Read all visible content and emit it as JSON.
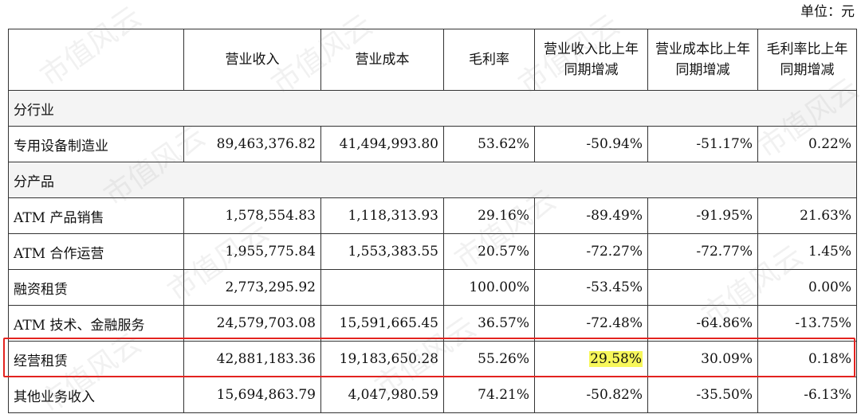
{
  "unit_note": "单位：元",
  "headers": [
    "",
    "营业收入",
    "营业成本",
    "毛利率",
    "营业收入比上年同期增减",
    "营业成本比上年同期增减",
    "毛利率比上年同期增减"
  ],
  "sections": [
    {
      "title": "分行业",
      "rows": [
        [
          "专用设备制造业",
          "89,463,376.82",
          "41,494,993.80",
          "53.62%",
          "-50.94%",
          "-51.17%",
          "0.22%"
        ]
      ]
    },
    {
      "title": "分产品",
      "rows": [
        [
          "ATM 产品销售",
          "1,578,554.83",
          "1,118,313.93",
          "29.16%",
          "-89.49%",
          "-91.95%",
          "21.63%"
        ],
        [
          "ATM 合作运营",
          "1,955,775.84",
          "1,553,383.55",
          "20.57%",
          "-72.27%",
          "-72.77%",
          "1.45%"
        ],
        [
          "融资租赁",
          "2,773,295.92",
          "",
          "100.00%",
          "-53.45%",
          "",
          "0.00%"
        ],
        [
          "ATM 技术、金融服务",
          "24,579,703.08",
          "15,591,665.45",
          "36.57%",
          "-72.48%",
          "-64.86%",
          "-13.75%"
        ],
        [
          "经营租赁",
          "42,881,183.36",
          "19,183,650.28",
          "55.26%",
          "29.58%",
          "30.09%",
          "0.18%"
        ],
        [
          "其他业务收入",
          "15,694,863.79",
          "4,047,980.59",
          "74.21%",
          "-50.82%",
          "-35.50%",
          "-6.13%"
        ]
      ]
    }
  ],
  "highlight": {
    "row_label": "经营租赁",
    "highlighted_value": "29.58%",
    "box_color": "#e3231f",
    "marker_color": "#f7f75a"
  },
  "watermark_text": "市值风云"
}
